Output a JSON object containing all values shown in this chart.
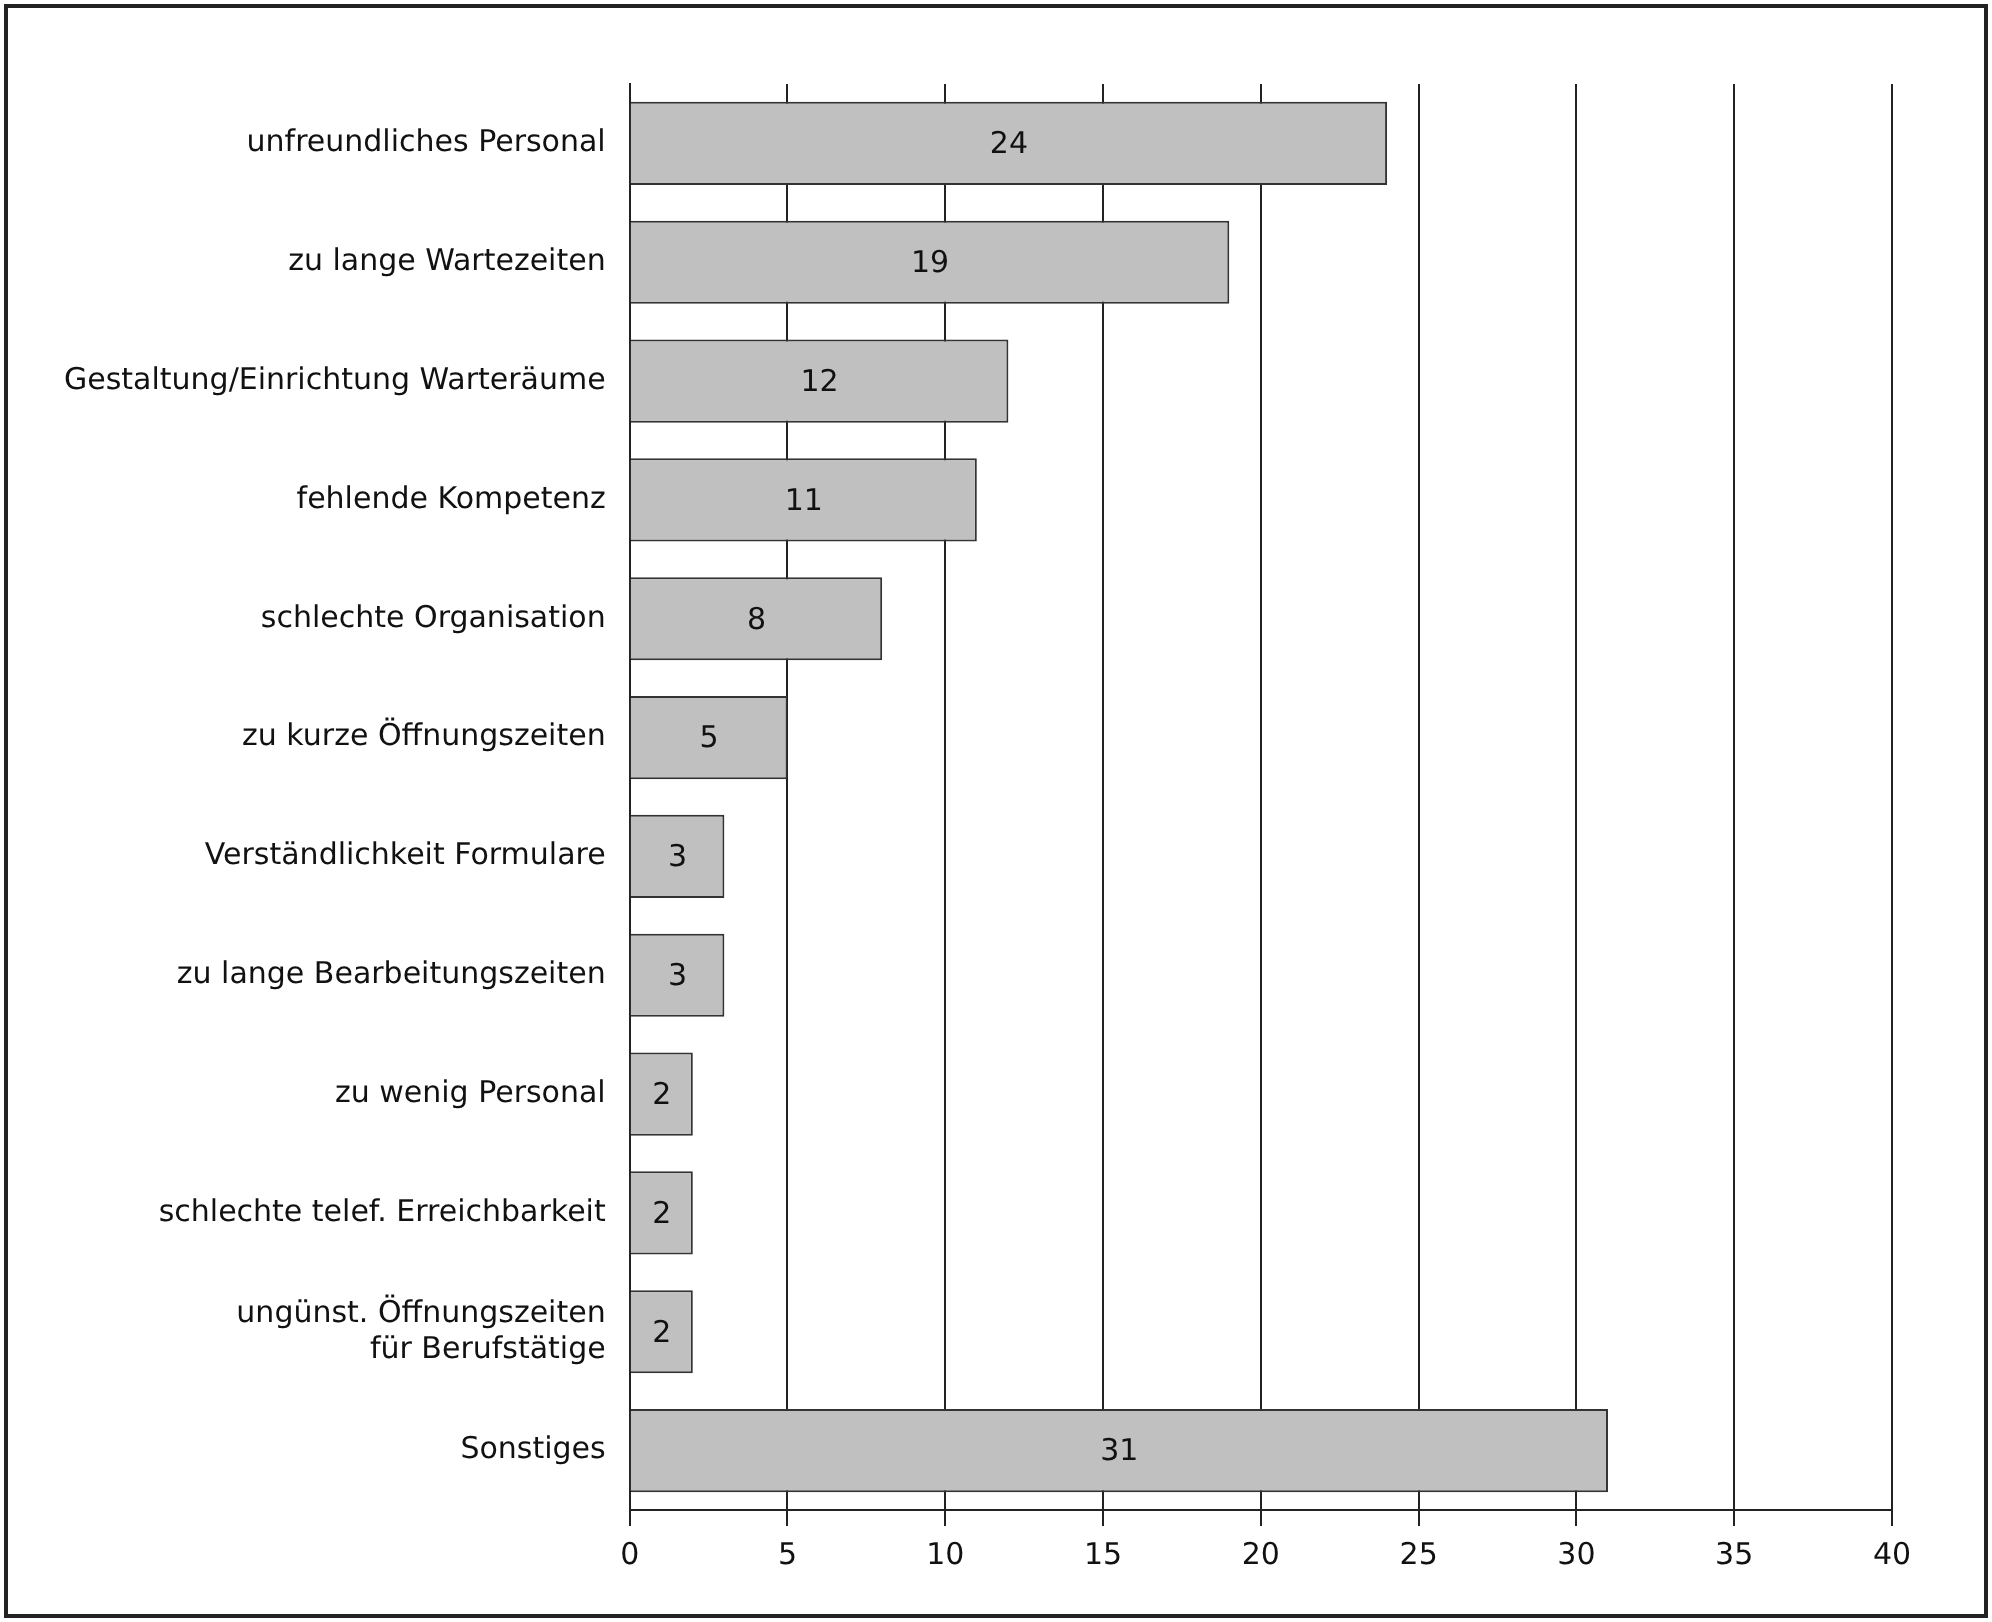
{
  "chart_data": {
    "type": "bar",
    "orientation": "horizontal",
    "categories": [
      "unfreundliches Personal",
      "zu lange Wartezeiten",
      "Gestaltung/Einrichtung Warteräume",
      "fehlende Kompetenz",
      "schlechte Organisation",
      "zu kurze Öffnungszeiten",
      "Verständlichkeit Formulare",
      "zu lange Bearbeitungszeiten",
      "zu wenig Personal",
      "schlechte telef. Erreichbarkeit",
      "ungünst. Öffnungszeiten\nfür Berufstätige",
      "Sonstiges"
    ],
    "values": [
      24,
      19,
      12,
      11,
      8,
      5,
      3,
      3,
      2,
      2,
      2,
      31
    ],
    "color": "#c0c0c0",
    "xlim": [
      0,
      40
    ],
    "xticks": [
      0,
      5,
      10,
      15,
      20,
      25,
      30,
      35,
      40
    ],
    "grid": "x",
    "legend": false,
    "data_labels": true
  }
}
